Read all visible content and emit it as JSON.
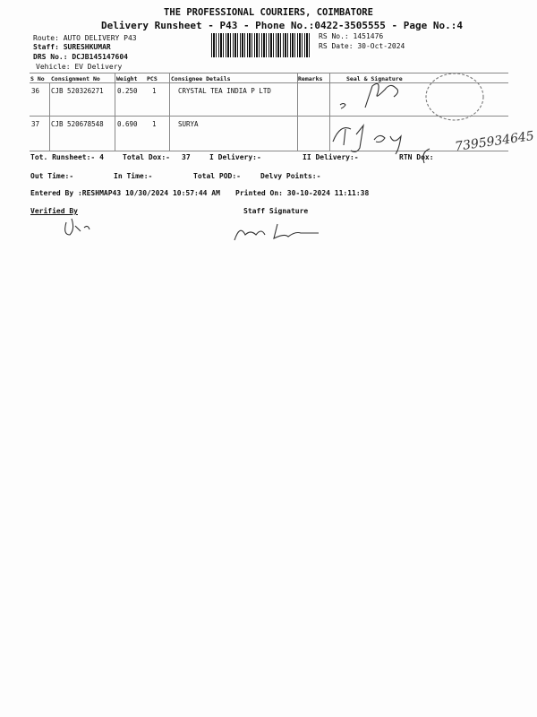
{
  "header": {
    "title": "THE PROFESSIONAL COURIERS, COIMBATORE",
    "subtitle": "Delivery Runsheet - P43 - Phone No.:0422-3505555 - Page No.:4"
  },
  "info": {
    "route": "Route: AUTO DELIVERY P43",
    "staff": "Staff: SURESHKUMAR",
    "drs": "DRS No.: DCJB145147604",
    "vehicle": "Vehicle: EV Delivery",
    "rs_no": "RS No.: 1451476",
    "rs_date": "RS Date: 30-Oct-2024"
  },
  "table": {
    "columns": [
      "S No",
      "Consignment No",
      "Weight",
      "PCS",
      "Consignee Details",
      "Remarks",
      "Seal & Signature"
    ],
    "rows": [
      {
        "sno": "36",
        "consignment": "CJB 520326271",
        "weight": "0.250",
        "pcs": "1",
        "consignee": "CRYSTAL TEA INDIA P LTD",
        "remarks": ""
      },
      {
        "sno": "37",
        "consignment": "CJB 520678548",
        "weight": "0.690",
        "pcs": "1",
        "consignee": "SURYA",
        "remarks": ""
      }
    ]
  },
  "totals": {
    "runsheet": "Tot. Runsheet:- 4",
    "total_dox": "Total Dox:-",
    "dox_value": "37",
    "i_delivery": "I Delivery:-",
    "ii_delivery": "II Delivery:-",
    "rtn_dox": "RTN Dox:"
  },
  "times": {
    "out_time": "Out Time:-",
    "in_time": "In Time:-",
    "total_pod": "Total POD:-",
    "delvy_points": "Delvy Points:-"
  },
  "footer": {
    "entered_by": "Entered By :RESHMAP43 10/30/2024 10:57:44 AM",
    "printed_on": "Printed On: 30-10-2024 11:11:38",
    "verified_by": "Verified By",
    "staff_signature": "Staff Signature"
  },
  "handwritten": {
    "phone_note": "7395934645"
  }
}
